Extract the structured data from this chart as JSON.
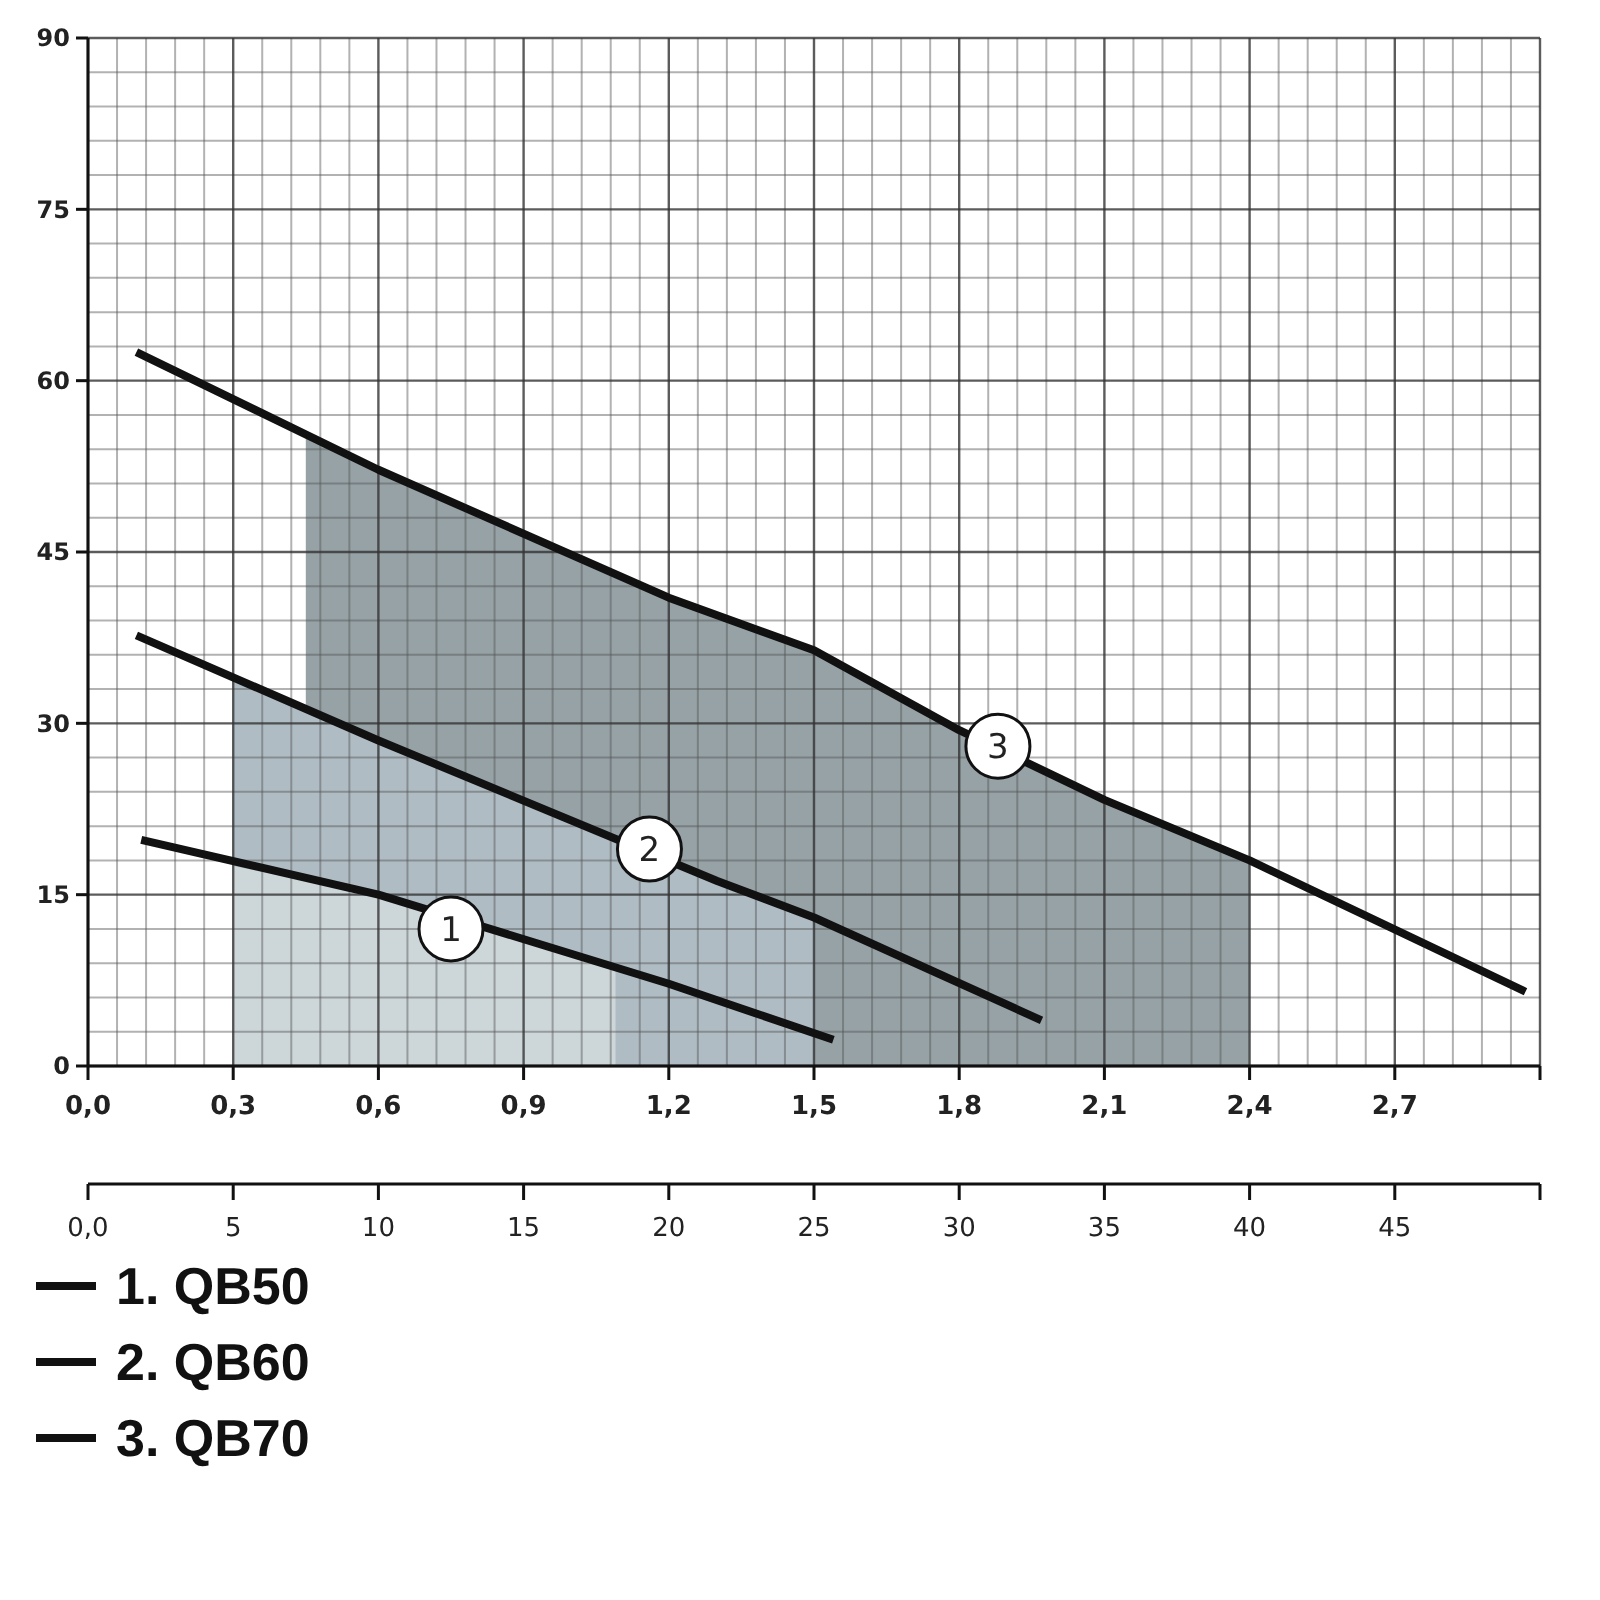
{
  "chart_data": {
    "type": "line",
    "xlim": [
      0,
      3
    ],
    "xticks": [
      {
        "value": 0,
        "label": "0,0"
      },
      {
        "value": 0.3,
        "label": "0,3"
      },
      {
        "value": 0.6,
        "label": "0,6"
      },
      {
        "value": 0.9,
        "label": "0,9"
      },
      {
        "value": 1.2,
        "label": "1,2"
      },
      {
        "value": 1.5,
        "label": "1,5"
      },
      {
        "value": 1.8,
        "label": "1,8"
      },
      {
        "value": 2.1,
        "label": "2,1"
      },
      {
        "value": 2.4,
        "label": "2,4"
      },
      {
        "value": 2.7,
        "label": "2,7"
      },
      {
        "value": 3,
        "label": null
      }
    ],
    "x2lim": [
      0,
      50
    ],
    "x2ticks": [
      {
        "value": 0,
        "label": "0,0"
      },
      5,
      10,
      15,
      20,
      25,
      30,
      35,
      40,
      45,
      {
        "value": 50,
        "label": null
      }
    ],
    "ylim": [
      0,
      90
    ],
    "yticks": [
      0,
      15,
      30,
      45,
      60,
      75,
      90
    ],
    "grid": true,
    "legend": "bottom left",
    "line_style": "solid",
    "marker": "none",
    "series": [
      {
        "type": "area",
        "color": "#96a2a6",
        "x": [
          0.45,
          0.6,
          1.2,
          1.5,
          1.8,
          2.1,
          2.4
        ],
        "values": [
          55.5,
          52.2,
          41,
          36.4,
          29.4,
          23.3,
          18
        ]
      },
      {
        "type": "area",
        "color": "#afbcc4",
        "x": [
          0.3,
          0.6,
          1.3,
          1.5
        ],
        "values": [
          34,
          28.5,
          16.2,
          13
        ]
      },
      {
        "type": "area",
        "color": "#cdd6d9",
        "x": [
          0.3,
          0.6,
          1.09
        ],
        "values": [
          17.5,
          15,
          8.5
        ]
      },
      {
        "name": "1. QB50",
        "color": "#111111",
        "x": [
          0.11,
          0.6,
          1.2,
          1.54
        ],
        "values": [
          19.8,
          15,
          7.2,
          2.3
        ]
      },
      {
        "name": "2. QB60",
        "color": "#111111",
        "x": [
          0.1,
          0.6,
          1.3,
          1.5,
          1.97
        ],
        "values": [
          37.7,
          28.5,
          16.2,
          13,
          4
        ]
      },
      {
        "name": "3. QB70",
        "color": "#111111",
        "x": [
          0.1,
          0.6,
          1.2,
          1.5,
          1.8,
          2.1,
          2.4,
          2.97
        ],
        "values": [
          62.5,
          52.2,
          41,
          36.4,
          29.4,
          23.3,
          18,
          6.5
        ]
      }
    ],
    "annotations": [
      {
        "text": "1",
        "x": 0.75,
        "y": 12
      },
      {
        "text": "2",
        "x": 1.16,
        "y": 19
      },
      {
        "text": "3",
        "x": 1.88,
        "y": 28
      }
    ]
  }
}
